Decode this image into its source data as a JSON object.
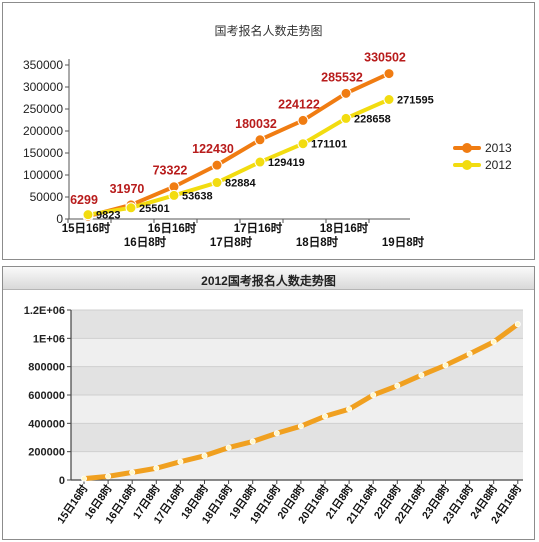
{
  "chart_data": [
    {
      "type": "line",
      "title": "国考报名人数走势图",
      "x": [
        "15日16时",
        "16日8时",
        "16日16时",
        "17日8时",
        "17日16时",
        "18日8时",
        "18日16时",
        "19日8时"
      ],
      "yticks": [
        "0",
        "50000",
        "100000",
        "150000",
        "200000",
        "250000",
        "300000",
        "350000"
      ],
      "ylim": [
        0,
        350000
      ],
      "legend_position": "right",
      "series": [
        {
          "name": "2013",
          "color": "#f07c12",
          "values": [
            6299,
            31970,
            73322,
            122430,
            180032,
            224122,
            285532,
            330502
          ],
          "labels": [
            "6299",
            "31970",
            "73322",
            "122430",
            "180032",
            "224122",
            "285532",
            "330502"
          ],
          "label_color": "#b81c1c"
        },
        {
          "name": "2012",
          "color": "#f2dc10",
          "values": [
            9823,
            25501,
            53638,
            82884,
            129419,
            171101,
            228658,
            271595
          ],
          "labels": [
            "9823",
            "25501",
            "53638",
            "82884",
            "129419",
            "171101",
            "228658",
            "271595"
          ],
          "label_color": "#111111"
        }
      ]
    },
    {
      "type": "line",
      "title": "2012国考报名人数走势图",
      "x": [
        "15日16时",
        "16日8时",
        "16日16时",
        "17日8时",
        "17日16时",
        "18日8时",
        "18日16时",
        "19日8时",
        "19日16时",
        "20日8时",
        "20日16时",
        "21日8时",
        "21日16时",
        "22日8时",
        "22日16时",
        "23日8时",
        "23日16时",
        "24日8时",
        "24日16时"
      ],
      "yticks": [
        "0",
        "200000",
        "400000",
        "600000",
        "800000",
        "1E+06",
        "1.2E+06"
      ],
      "ylim": [
        0,
        1200000
      ],
      "series": [
        {
          "name": "2012",
          "color": "#f0a020",
          "values": [
            9823,
            25501,
            53638,
            82884,
            129419,
            171101,
            228658,
            271595,
            330000,
            380000,
            450000,
            500000,
            600000,
            665000,
            740000,
            810000,
            890000,
            975000,
            1100000
          ]
        }
      ]
    }
  ]
}
